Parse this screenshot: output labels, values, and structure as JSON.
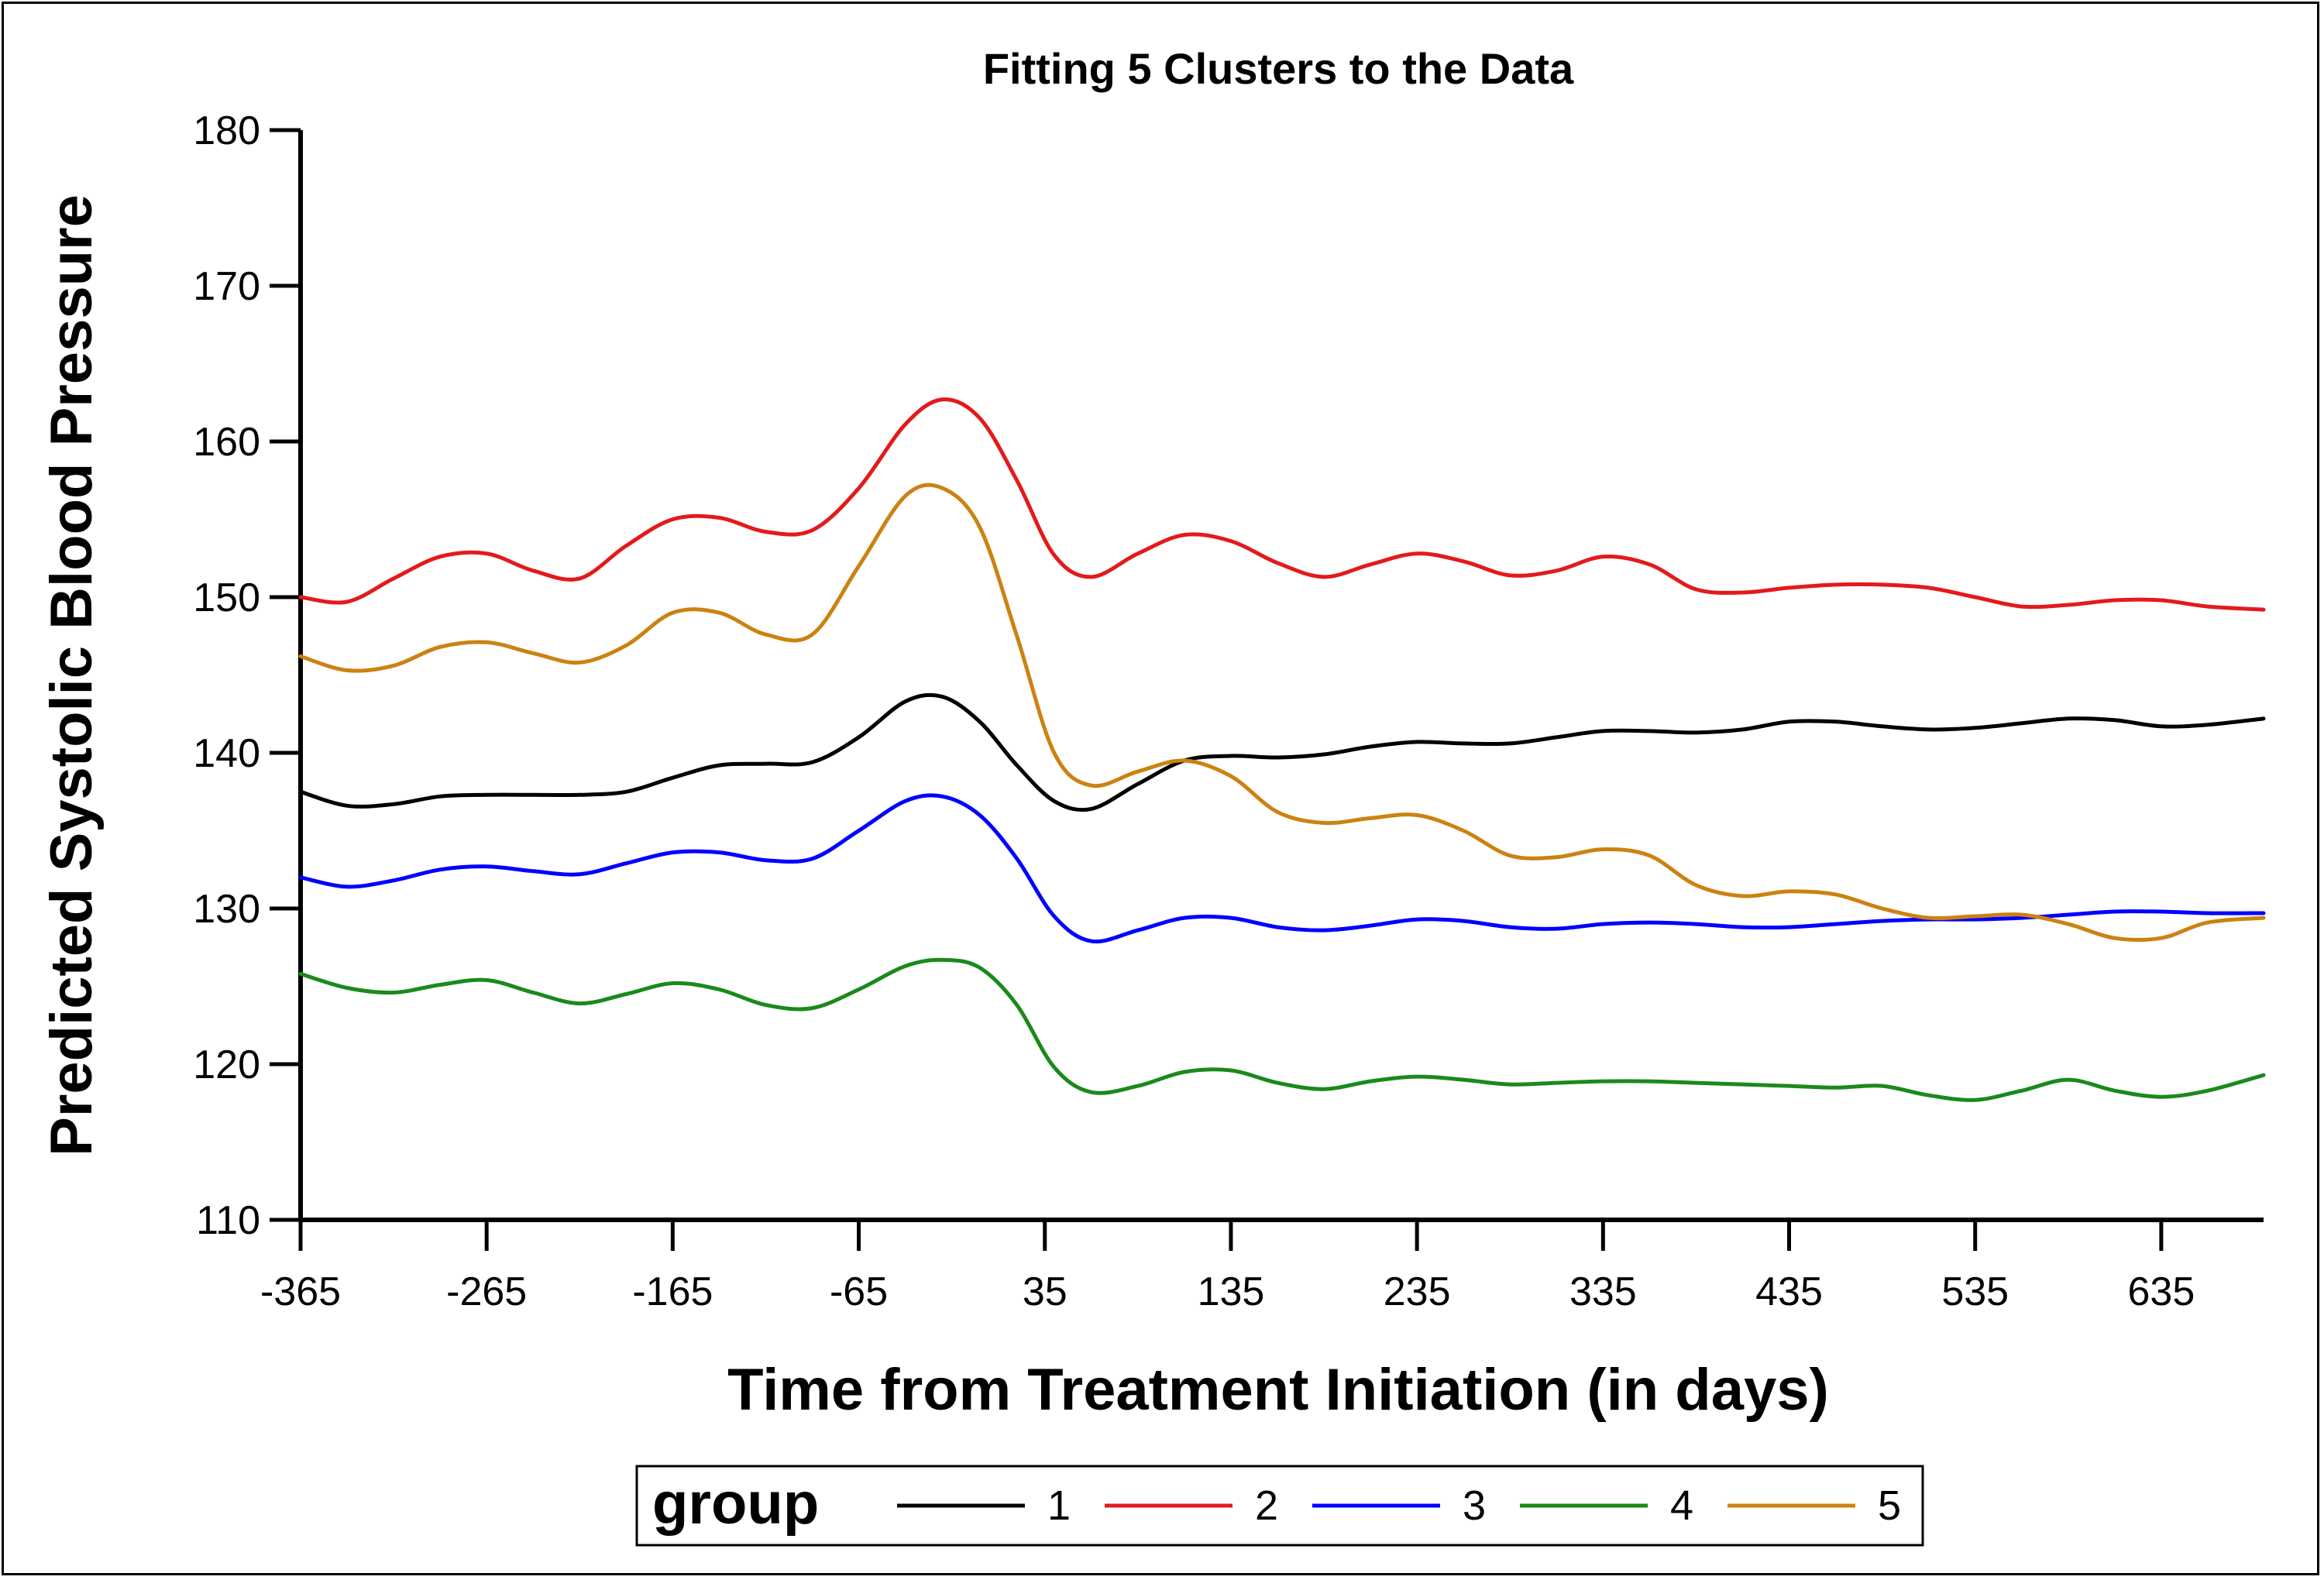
{
  "chart_data": {
    "type": "line",
    "title": "Fitting 5 Clusters to the Data",
    "xlabel": "Time from Treatment Initiation (in days)",
    "ylabel": "Predicted Systolic Blood Pressure",
    "xlim": [
      -365,
      690
    ],
    "ylim": [
      110,
      180
    ],
    "xticks": [
      -365,
      -265,
      -165,
      -65,
      35,
      135,
      235,
      335,
      435,
      535,
      635
    ],
    "yticks": [
      110,
      120,
      130,
      140,
      150,
      160,
      170,
      180
    ],
    "grid": false,
    "legend": {
      "title": "group",
      "position": "bottom"
    },
    "x": [
      -365,
      -340,
      -315,
      -290,
      -265,
      -240,
      -215,
      -190,
      -165,
      -140,
      -115,
      -90,
      -65,
      -40,
      -20,
      0,
      20,
      40,
      60,
      85,
      110,
      135,
      160,
      185,
      210,
      235,
      260,
      285,
      310,
      335,
      360,
      385,
      410,
      435,
      460,
      485,
      510,
      535,
      560,
      585,
      610,
      635,
      660,
      690
    ],
    "series": [
      {
        "name": "1",
        "color": "#000000",
        "values": [
          137.5,
          136.6,
          136.7,
          137.2,
          137.3,
          137.3,
          137.3,
          137.5,
          138.4,
          139.2,
          139.3,
          139.4,
          141.0,
          143.3,
          143.6,
          142.0,
          139.2,
          136.9,
          136.4,
          138.0,
          139.5,
          139.8,
          139.7,
          139.9,
          140.4,
          140.7,
          140.6,
          140.6,
          141.0,
          141.4,
          141.4,
          141.3,
          141.5,
          142.0,
          142.0,
          141.7,
          141.5,
          141.6,
          141.9,
          142.2,
          142.1,
          141.7,
          141.8,
          142.2
        ]
      },
      {
        "name": "2",
        "color": "#e31a1c",
        "values": [
          150.0,
          149.7,
          151.2,
          152.6,
          152.8,
          151.7,
          151.2,
          153.3,
          155.0,
          155.1,
          154.2,
          154.3,
          157.0,
          161.1,
          162.7,
          161.5,
          157.5,
          152.7,
          151.3,
          152.8,
          154.0,
          153.6,
          152.2,
          151.3,
          152.1,
          152.8,
          152.3,
          151.4,
          151.7,
          152.6,
          152.1,
          150.5,
          150.3,
          150.6,
          150.8,
          150.8,
          150.6,
          150.0,
          149.4,
          149.5,
          149.8,
          149.8,
          149.4,
          149.2
        ]
      },
      {
        "name": "3",
        "color": "#0000ff",
        "values": [
          132.0,
          131.4,
          131.8,
          132.5,
          132.7,
          132.4,
          132.2,
          132.9,
          133.6,
          133.6,
          133.1,
          133.2,
          135.0,
          136.9,
          137.2,
          136.0,
          133.2,
          129.5,
          127.9,
          128.6,
          129.4,
          129.4,
          128.8,
          128.6,
          128.9,
          129.3,
          129.2,
          128.8,
          128.7,
          129.0,
          129.1,
          129.0,
          128.8,
          128.8,
          129.0,
          129.2,
          129.3,
          129.3,
          129.4,
          129.6,
          129.8,
          129.8,
          129.7,
          129.7
        ]
      },
      {
        "name": "4",
        "color": "#1a8a1a",
        "values": [
          125.8,
          124.9,
          124.6,
          125.1,
          125.4,
          124.6,
          123.9,
          124.5,
          125.2,
          124.8,
          123.8,
          123.6,
          124.8,
          126.3,
          126.7,
          126.2,
          123.8,
          119.8,
          118.2,
          118.6,
          119.5,
          119.6,
          118.8,
          118.4,
          118.9,
          119.2,
          119.0,
          118.7,
          118.8,
          118.9,
          118.9,
          118.8,
          118.7,
          118.6,
          118.5,
          118.6,
          118.0,
          117.7,
          118.3,
          119.0,
          118.3,
          117.9,
          118.3,
          119.3
        ]
      },
      {
        "name": "5",
        "color": "#cc8211",
        "values": [
          146.2,
          145.3,
          145.6,
          146.8,
          147.1,
          146.4,
          145.8,
          146.9,
          149.0,
          149.0,
          147.6,
          147.6,
          152.0,
          156.5,
          157.0,
          154.5,
          147.5,
          140.0,
          137.9,
          138.8,
          139.5,
          138.5,
          136.2,
          135.5,
          135.8,
          136.0,
          135.0,
          133.4,
          133.3,
          133.8,
          133.4,
          131.5,
          130.8,
          131.1,
          130.9,
          130.0,
          129.4,
          129.5,
          129.6,
          129.0,
          128.1,
          128.1,
          129.1,
          129.4
        ]
      }
    ]
  }
}
